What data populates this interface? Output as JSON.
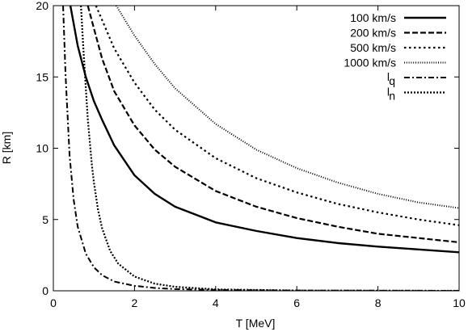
{
  "chart_data": {
    "type": "line",
    "xlabel": "T [MeV]",
    "ylabel": "R [km]",
    "xlim": [
      0,
      10
    ],
    "ylim": [
      0,
      20
    ],
    "x_ticks": [
      "0",
      "2",
      "4",
      "6",
      "8",
      "10"
    ],
    "y_ticks": [
      "0",
      "5",
      "10",
      "15",
      "20"
    ],
    "grid": false,
    "legend_placement": "top-right",
    "series": [
      {
        "name": "100 km/s",
        "style": "solid",
        "x": [
          0.42,
          0.6,
          0.8,
          1.0,
          1.2,
          1.5,
          2.0,
          2.5,
          3.0,
          4.0,
          5.0,
          6.0,
          7.0,
          8.0,
          9.0,
          10.0
        ],
        "y": [
          20,
          17.2,
          15.0,
          13.3,
          12.0,
          10.2,
          8.1,
          6.8,
          5.9,
          4.8,
          4.2,
          3.7,
          3.35,
          3.1,
          2.9,
          2.7
        ]
      },
      {
        "name": "200 km/s",
        "style": "dashed",
        "x": [
          0.85,
          1.0,
          1.2,
          1.5,
          2.0,
          2.5,
          3.0,
          4.0,
          5.0,
          6.0,
          7.0,
          8.0,
          9.0,
          10.0
        ],
        "y": [
          20,
          18.4,
          16.3,
          14.0,
          11.6,
          9.9,
          8.7,
          7.0,
          5.9,
          5.1,
          4.5,
          4.0,
          3.7,
          3.4
        ]
      },
      {
        "name": "500 km/s",
        "style": "dotted",
        "x": [
          1.05,
          1.2,
          1.5,
          2.0,
          2.5,
          3.0,
          4.0,
          5.0,
          6.0,
          7.0,
          8.0,
          9.0,
          10.0
        ],
        "y": [
          20,
          19.0,
          17.0,
          14.6,
          12.7,
          11.3,
          9.3,
          7.9,
          6.9,
          6.1,
          5.5,
          5.0,
          4.6
        ]
      },
      {
        "name": "1000 km/s",
        "style": "fine-dotted",
        "x": [
          1.55,
          2.0,
          2.5,
          3.0,
          4.0,
          5.0,
          6.0,
          7.0,
          8.0,
          9.0,
          10.0
        ],
        "y": [
          20,
          17.9,
          15.9,
          14.2,
          11.7,
          9.9,
          8.6,
          7.6,
          6.8,
          6.2,
          5.8
        ]
      },
      {
        "name": "l_q",
        "style": "dash-dot",
        "x": [
          0.24,
          0.3,
          0.4,
          0.5,
          0.6,
          0.8,
          1.0,
          1.2,
          1.5,
          2.0,
          2.5,
          3.0,
          4.0,
          6.0,
          8.0,
          10.0
        ],
        "y": [
          20,
          15.2,
          9.5,
          6.4,
          4.5,
          2.6,
          1.65,
          1.1,
          0.65,
          0.35,
          0.2,
          0.12,
          0.06,
          0.02,
          0.01,
          0.0
        ]
      },
      {
        "name": "l_n",
        "style": "dotted-dense",
        "x": [
          0.68,
          0.75,
          0.85,
          0.95,
          1.0,
          1.1,
          1.2,
          1.4,
          1.6,
          2.0,
          2.5,
          3.0,
          4.0,
          6.0,
          8.0,
          10.0
        ],
        "y": [
          20,
          16.5,
          12.0,
          8.8,
          7.6,
          5.7,
          4.4,
          2.8,
          1.9,
          1.0,
          0.5,
          0.28,
          0.1,
          0.02,
          0.01,
          0.0
        ]
      }
    ]
  },
  "legend": {
    "items": [
      {
        "label": "100 km/s",
        "style": "solid"
      },
      {
        "label": "200 km/s",
        "style": "dashed"
      },
      {
        "label": "500 km/s",
        "style": "dotted"
      },
      {
        "label": "1000 km/s",
        "style": "fine-dotted"
      },
      {
        "label": "l_q",
        "style": "dash-dot"
      },
      {
        "label": "l_n",
        "style": "dotted-dense"
      }
    ]
  }
}
